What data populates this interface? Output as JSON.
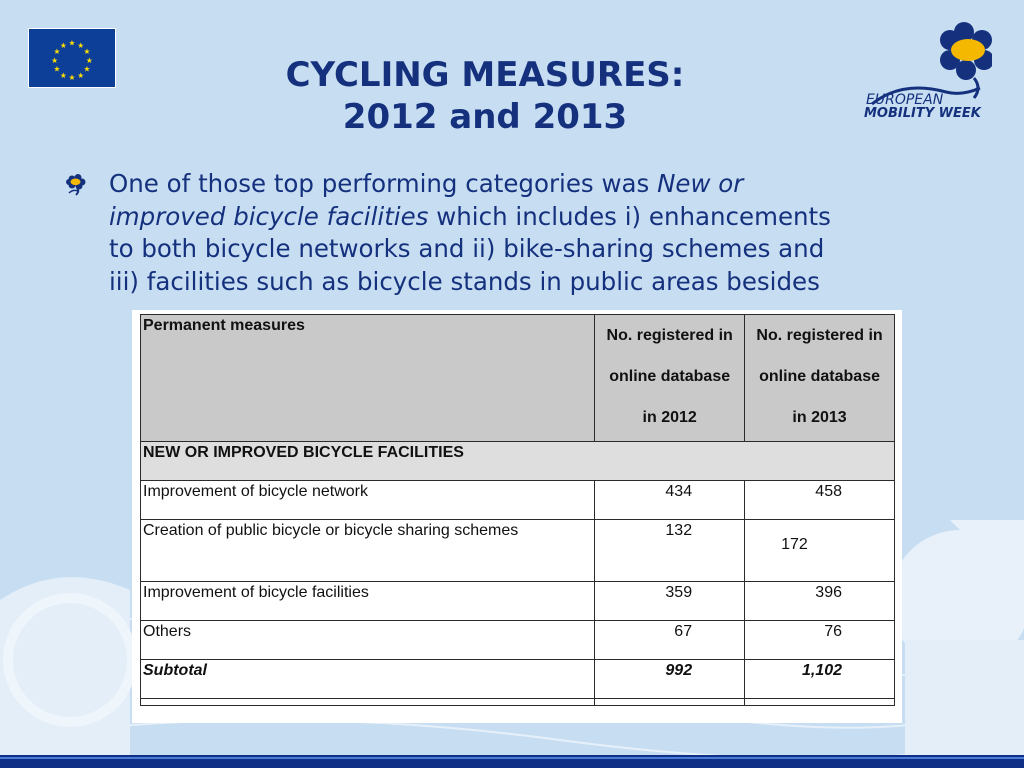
{
  "slide": {
    "title_line1": "CYCLING MEASURES:",
    "title_line2": "2012 and 2013",
    "logo": {
      "line1": "EUROPEAN",
      "line2": "MOBILITY WEEK"
    },
    "bullet": {
      "line1_pre": "One of those top performing categories was ",
      "line1_em": "New or",
      "line2_em": "improved bicycle facilities",
      "line2_post": " which includes i) enhancements",
      "line3": "to both bicycle networks and ii) bike-sharing schemes and",
      "line4": "iii) facilities such as bicycle stands in public areas besides"
    },
    "colors": {
      "background": "#c7def2",
      "title": "#15317e",
      "eu_blue": "#0d3f99",
      "eu_star": "#ffdd00",
      "flower_yellow": "#f5b800"
    }
  },
  "table": {
    "header": {
      "col1": "Permanent measures",
      "col2": [
        "No. registered in",
        "online database",
        "in 2012"
      ],
      "col3": [
        "No. registered in",
        "online database",
        "in 2013"
      ]
    },
    "section": "NEW OR IMPROVED BICYCLE FACILITIES",
    "rows": [
      {
        "label": "Improvement of bicycle network",
        "y2012": "434",
        "y2013": "458"
      },
      {
        "label": "Creation of public bicycle or bicycle sharing schemes",
        "y2012": "132",
        "y2013": "172"
      },
      {
        "label": "Improvement of bicycle facilities",
        "y2012": "359",
        "y2013": "396"
      },
      {
        "label": "Others",
        "y2012": "67",
        "y2013": "76"
      }
    ],
    "subtotal": {
      "label": "Subtotal",
      "y2012": "992",
      "y2013": "1,102"
    }
  }
}
